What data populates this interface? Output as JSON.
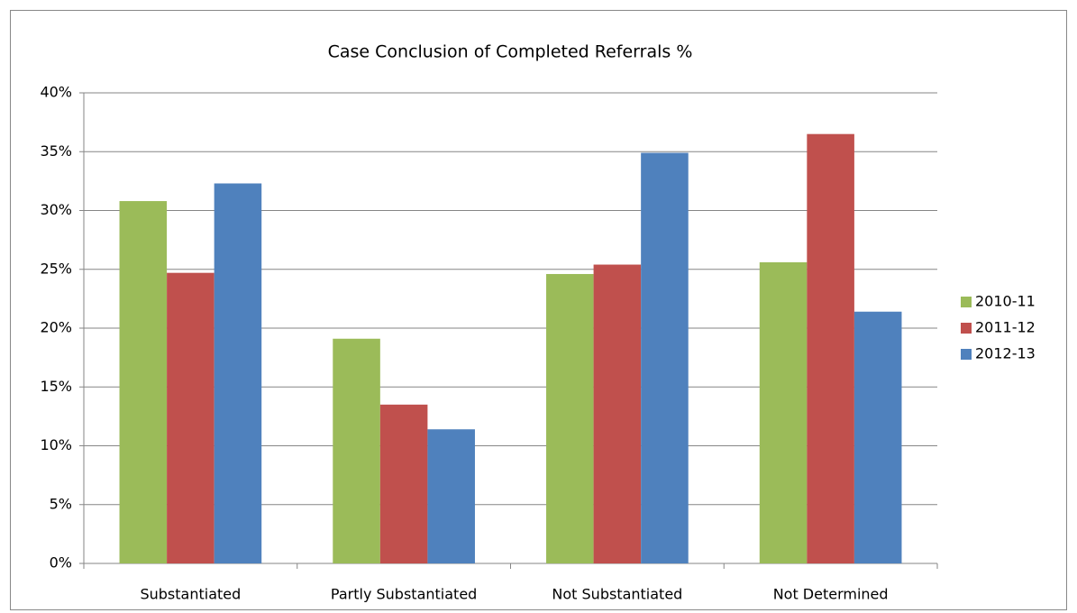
{
  "chart_data": {
    "type": "bar",
    "title": "Case Conclusion of Completed Referrals %",
    "categories": [
      "Substantiated",
      "Partly Substantiated",
      "Not Substantiated",
      "Not Determined"
    ],
    "series": [
      {
        "name": "2010-11",
        "color": "#9bbb59",
        "values": [
          30.8,
          19.1,
          24.6,
          25.6
        ]
      },
      {
        "name": "2011-12",
        "color": "#c0504d",
        "values": [
          24.7,
          13.5,
          25.4,
          36.5
        ]
      },
      {
        "name": "2012-13",
        "color": "#4f81bd",
        "values": [
          32.3,
          11.4,
          34.9,
          21.4
        ]
      }
    ],
    "ylim": [
      0,
      40
    ],
    "yticks": [
      {
        "value": 0,
        "label": "0%"
      },
      {
        "value": 5,
        "label": "5%"
      },
      {
        "value": 10,
        "label": "10%"
      },
      {
        "value": 15,
        "label": "15%"
      },
      {
        "value": 20,
        "label": "20%"
      },
      {
        "value": 25,
        "label": "25%"
      },
      {
        "value": 30,
        "label": "30%"
      },
      {
        "value": 35,
        "label": "35%"
      },
      {
        "value": 40,
        "label": "40%"
      }
    ],
    "grid": true,
    "legend": "right"
  }
}
